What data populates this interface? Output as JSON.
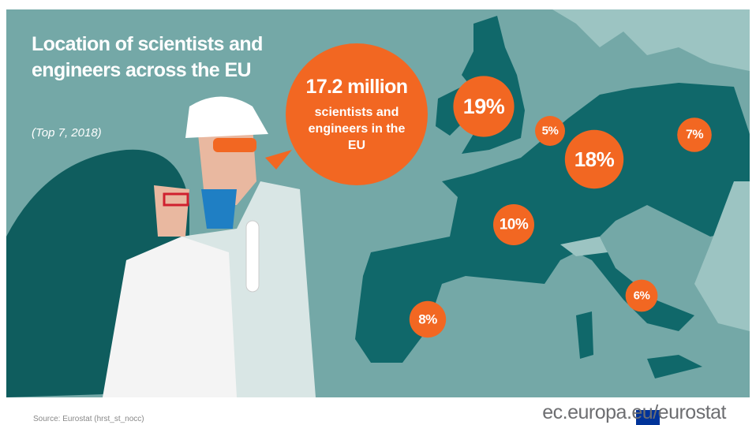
{
  "header": {
    "title": "Location of scientists and engineers across the EU",
    "subtitle": "(Top 7, 2018)"
  },
  "callout": {
    "headline": "17.2 million",
    "text": "scientists and engineers in the EU"
  },
  "shares": {
    "values": [
      19,
      5,
      18,
      7,
      10,
      6,
      8
    ],
    "value_labels": [
      "19%",
      "5%",
      "18%",
      "7%",
      "10%",
      "6%",
      "8%"
    ]
  },
  "footer": {
    "source": "Source: Eurostat (hrst_st_nocc)",
    "site": "ec.europa.eu/eurostat"
  }
}
